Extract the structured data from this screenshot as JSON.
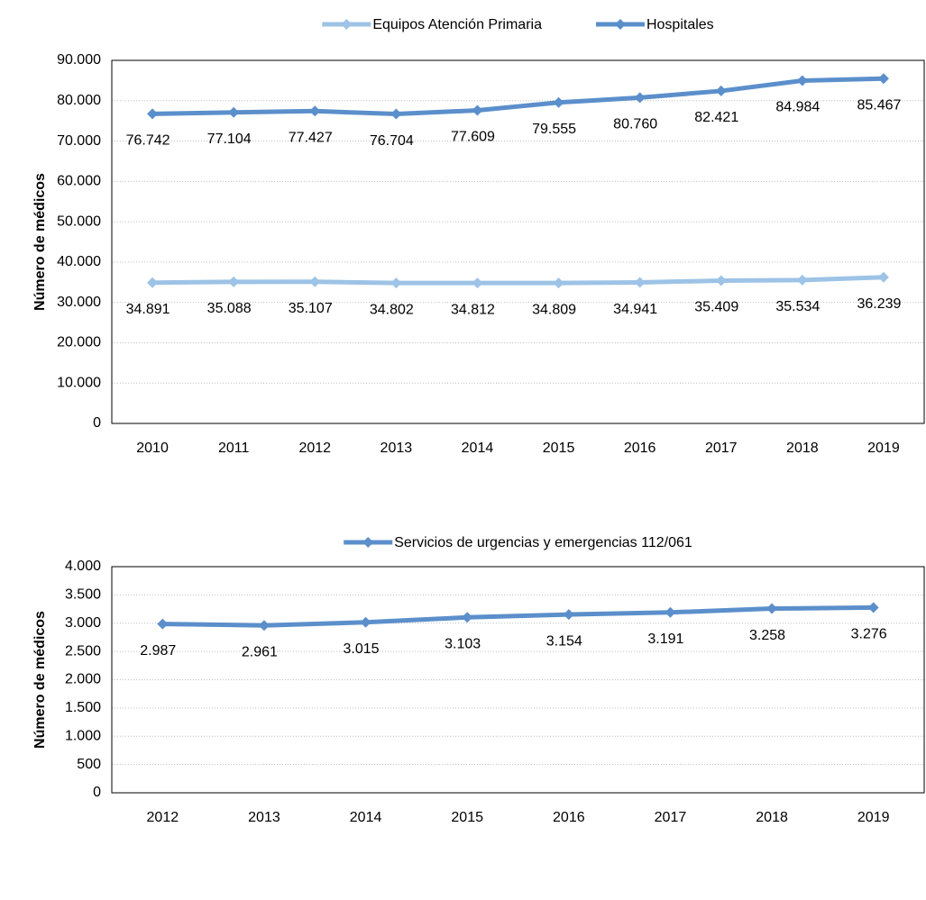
{
  "chart_data": [
    {
      "type": "line",
      "y_label": "Número de médicos",
      "legend": "top",
      "grid": true,
      "categories": [
        "2010",
        "2011",
        "2012",
        "2013",
        "2014",
        "2015",
        "2016",
        "2017",
        "2018",
        "2019"
      ],
      "ylim": [
        0,
        90000
      ],
      "yticks": [
        0,
        {
          "value": 10000,
          "label": "10.000"
        },
        {
          "value": 20000,
          "label": "20.000"
        },
        {
          "value": 30000,
          "label": "30.000"
        },
        {
          "value": 40000,
          "label": "40.000"
        },
        {
          "value": 50000,
          "label": "50.000"
        },
        {
          "value": 60000,
          "label": "60.000"
        },
        {
          "value": 70000,
          "label": "70.000"
        },
        {
          "value": 80000,
          "label": "80.000"
        },
        {
          "value": 90000,
          "label": "90.000"
        }
      ],
      "series": [
        {
          "name": "Equipos Atención Primaria",
          "color": "#9dc3e6",
          "values": [
            34891,
            35088,
            35107,
            34802,
            34812,
            34809,
            34941,
            35409,
            35534,
            36239
          ],
          "value_labels": [
            "34.891",
            "35.088",
            "35.107",
            "34.802",
            "34.812",
            "34.809",
            "34.941",
            "35.409",
            "35.534",
            "36.239"
          ]
        },
        {
          "name": "Hospitales",
          "color": "#5b8fcb",
          "values": [
            76742,
            77104,
            77427,
            76704,
            77609,
            79555,
            80760,
            82421,
            84984,
            85467
          ],
          "value_labels": [
            "76.742",
            "77.104",
            "77.427",
            "76.704",
            "77.609",
            "79.555",
            "80.760",
            "82.421",
            "84.984",
            "85.467"
          ]
        }
      ]
    },
    {
      "type": "line",
      "y_label": "Número de médicos",
      "legend": "top",
      "grid": true,
      "categories": [
        "2012",
        "2013",
        "2014",
        "2015",
        "2016",
        "2017",
        "2018",
        "2019"
      ],
      "ylim": [
        0,
        4000
      ],
      "yticks": [
        0,
        500,
        {
          "value": 1000,
          "label": "1.000"
        },
        {
          "value": 1500,
          "label": "1.500"
        },
        {
          "value": 2000,
          "label": "2.000"
        },
        {
          "value": 2500,
          "label": "2.500"
        },
        {
          "value": 3000,
          "label": "3.000"
        },
        {
          "value": 3500,
          "label": "3.500"
        },
        {
          "value": 4000,
          "label": "4.000"
        }
      ],
      "series": [
        {
          "name": "Servicios de urgencias y emergencias 112/061",
          "color": "#5b8fcb",
          "values": [
            2987,
            2961,
            3015,
            3103,
            3154,
            3191,
            3258,
            3276
          ],
          "value_labels": [
            "2.987",
            "2.961",
            "3.015",
            "3.103",
            "3.154",
            "3.191",
            "3.258",
            "3.276"
          ]
        }
      ]
    }
  ]
}
